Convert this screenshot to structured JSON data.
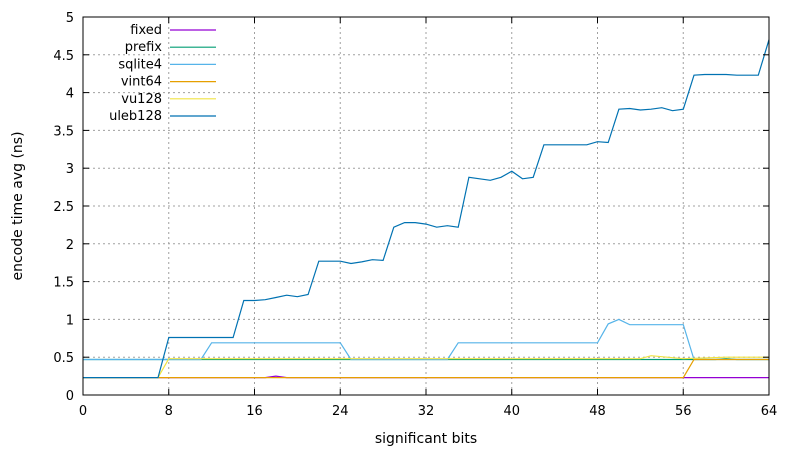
{
  "chart_data": {
    "type": "line",
    "title": "",
    "xlabel": "significant bits",
    "ylabel": "encode time avg (ns)",
    "xlim": [
      0,
      64
    ],
    "ylim": [
      0,
      5
    ],
    "xticks": [
      0,
      8,
      16,
      24,
      32,
      40,
      48,
      56,
      64
    ],
    "yticks": [
      0,
      0.5,
      1,
      1.5,
      2,
      2.5,
      3,
      3.5,
      4,
      4.5,
      5
    ],
    "grid": true,
    "legend_position": "top-left",
    "series": [
      {
        "name": "fixed",
        "color": "#9400d3",
        "x": [
          0,
          7,
          8,
          16,
          17,
          18,
          19,
          20,
          24,
          32,
          40,
          48,
          56,
          57,
          64
        ],
        "y": [
          0.23,
          0.23,
          0.23,
          0.23,
          0.23,
          0.25,
          0.23,
          0.23,
          0.23,
          0.23,
          0.23,
          0.23,
          0.23,
          0.23,
          0.23
        ]
      },
      {
        "name": "prefix",
        "color": "#009e73",
        "x": [
          0,
          7,
          8,
          16,
          24,
          32,
          40,
          48,
          56,
          57,
          58,
          59,
          60,
          61,
          62,
          63,
          64
        ],
        "y": [
          0.47,
          0.47,
          0.47,
          0.47,
          0.47,
          0.47,
          0.47,
          0.47,
          0.47,
          0.47,
          0.47,
          0.47,
          0.48,
          0.47,
          0.47,
          0.47,
          0.47
        ]
      },
      {
        "name": "sqlite4",
        "color": "#56b4e9",
        "x": [
          0,
          7,
          8,
          9,
          10,
          11,
          12,
          13,
          14,
          16,
          18,
          20,
          22,
          23,
          24,
          25,
          26,
          28,
          30,
          31,
          32,
          33,
          34,
          35,
          36,
          38,
          40,
          42,
          44,
          46,
          47,
          48,
          49,
          50,
          51,
          52,
          54,
          55,
          56,
          57,
          58,
          60,
          62,
          64
        ],
        "y": [
          0.47,
          0.47,
          0.47,
          0.47,
          0.47,
          0.47,
          0.69,
          0.69,
          0.69,
          0.69,
          0.69,
          0.69,
          0.69,
          0.69,
          0.69,
          0.47,
          0.47,
          0.47,
          0.47,
          0.47,
          0.47,
          0.47,
          0.47,
          0.69,
          0.69,
          0.69,
          0.69,
          0.69,
          0.69,
          0.69,
          0.69,
          0.69,
          0.94,
          1.0,
          0.93,
          0.93,
          0.93,
          0.93,
          0.93,
          0.47,
          0.47,
          0.47,
          0.47,
          0.47
        ]
      },
      {
        "name": "vint64",
        "color": "#e69f00",
        "x": [
          0,
          7,
          8,
          16,
          24,
          32,
          40,
          48,
          55,
          56,
          57,
          64
        ],
        "y": [
          0.23,
          0.23,
          0.23,
          0.23,
          0.23,
          0.23,
          0.23,
          0.23,
          0.23,
          0.23,
          0.47,
          0.47
        ]
      },
      {
        "name": "vu128",
        "color": "#f0e442",
        "x": [
          0,
          7,
          8,
          16,
          24,
          32,
          40,
          48,
          52,
          53,
          56,
          60,
          64
        ],
        "y": [
          0.23,
          0.23,
          0.48,
          0.48,
          0.48,
          0.48,
          0.48,
          0.48,
          0.48,
          0.52,
          0.48,
          0.5,
          0.5
        ]
      },
      {
        "name": "uleb128",
        "color": "#0072b2",
        "x": [
          0,
          7,
          8,
          14,
          15,
          16,
          17,
          18,
          19,
          20,
          21,
          22,
          23,
          24,
          25,
          26,
          27,
          28,
          29,
          30,
          31,
          32,
          33,
          34,
          35,
          36,
          37,
          38,
          39,
          40,
          41,
          42,
          43,
          44,
          45,
          46,
          47,
          48,
          49,
          50,
          51,
          52,
          53,
          54,
          55,
          56,
          57,
          58,
          59,
          60,
          61,
          62,
          63,
          64
        ],
        "y": [
          0.23,
          0.23,
          0.76,
          0.76,
          1.25,
          1.25,
          1.26,
          1.29,
          1.32,
          1.3,
          1.33,
          1.77,
          1.77,
          1.77,
          1.74,
          1.76,
          1.79,
          1.78,
          2.22,
          2.28,
          2.28,
          2.26,
          2.22,
          2.24,
          2.22,
          2.88,
          2.86,
          2.84,
          2.88,
          2.96,
          2.86,
          2.88,
          3.31,
          3.31,
          3.31,
          3.31,
          3.31,
          3.35,
          3.34,
          3.78,
          3.79,
          3.77,
          3.78,
          3.8,
          3.76,
          3.78,
          4.23,
          4.24,
          4.24,
          4.24,
          4.23,
          4.23,
          4.23,
          4.7
        ]
      }
    ]
  }
}
